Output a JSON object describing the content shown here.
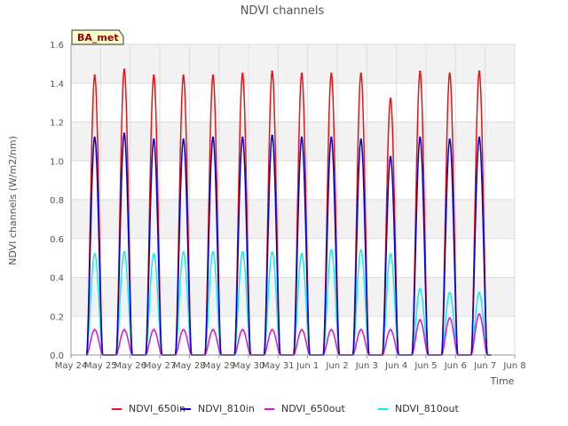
{
  "chart_data": {
    "type": "line",
    "title": "NDVI channels",
    "xlabel": "Time",
    "ylabel": "NDVI channels (W/m2/nm)",
    "ylim": [
      0,
      1.6
    ],
    "yticks": [
      0.0,
      0.2,
      0.4,
      0.6,
      0.8,
      1.0,
      1.2,
      1.4,
      1.6
    ],
    "ytick_labels": [
      "0.0",
      "0.2",
      "0.4",
      "0.6",
      "0.8",
      "1.0",
      "1.2",
      "1.4",
      "1.6"
    ],
    "xticks": [
      "May 24",
      "May 25",
      "May 26",
      "May 27",
      "May 28",
      "May 29",
      "May 30",
      "May 31",
      "Jun 1",
      "Jun 2",
      "Jun 3",
      "Jun 4",
      "Jun 5",
      "Jun 6",
      "Jun 7",
      "Jun 8"
    ],
    "x_day_range": [
      0,
      15
    ],
    "grid": true,
    "legend_position": "bottom",
    "annotation": "BA_met",
    "day_peaks": [
      {
        "date": "May 24",
        "day": 0.8
      },
      {
        "date": "May 25",
        "day": 1.8
      },
      {
        "date": "May 26",
        "day": 2.8
      },
      {
        "date": "May 27",
        "day": 3.8
      },
      {
        "date": "May 28",
        "day": 4.8
      },
      {
        "date": "May 29",
        "day": 5.8
      },
      {
        "date": "May 30",
        "day": 6.8
      },
      {
        "date": "May 31",
        "day": 7.8
      },
      {
        "date": "Jun 1",
        "day": 8.8
      },
      {
        "date": "Jun 2",
        "day": 9.8
      },
      {
        "date": "Jun 3",
        "day": 10.8
      },
      {
        "date": "Jun 4",
        "day": 11.8
      },
      {
        "date": "Jun 5",
        "day": 12.8
      },
      {
        "date": "Jun 6",
        "day": 13.8
      }
    ],
    "series": [
      {
        "name": "NDVI_650in",
        "color": "#ee1111",
        "peaks": [
          1.44,
          1.47,
          1.44,
          1.44,
          1.44,
          1.45,
          1.46,
          1.45,
          1.45,
          1.45,
          1.32,
          1.46,
          1.45,
          1.46
        ]
      },
      {
        "name": "NDVI_810in",
        "color": "#0000cc",
        "peaks": [
          1.12,
          1.14,
          1.11,
          1.11,
          1.12,
          1.12,
          1.13,
          1.12,
          1.12,
          1.11,
          1.02,
          1.12,
          1.11,
          1.12
        ]
      },
      {
        "name": "NDVI_650out",
        "color": "#dd11dd",
        "peaks": [
          0.13,
          0.13,
          0.13,
          0.13,
          0.13,
          0.13,
          0.13,
          0.13,
          0.13,
          0.13,
          0.13,
          0.18,
          0.19,
          0.21
        ]
      },
      {
        "name": "NDVI_810out",
        "color": "#11eeee",
        "peaks": [
          0.52,
          0.53,
          0.52,
          0.53,
          0.53,
          0.53,
          0.53,
          0.52,
          0.54,
          0.54,
          0.52,
          0.34,
          0.32,
          0.32
        ]
      }
    ]
  }
}
